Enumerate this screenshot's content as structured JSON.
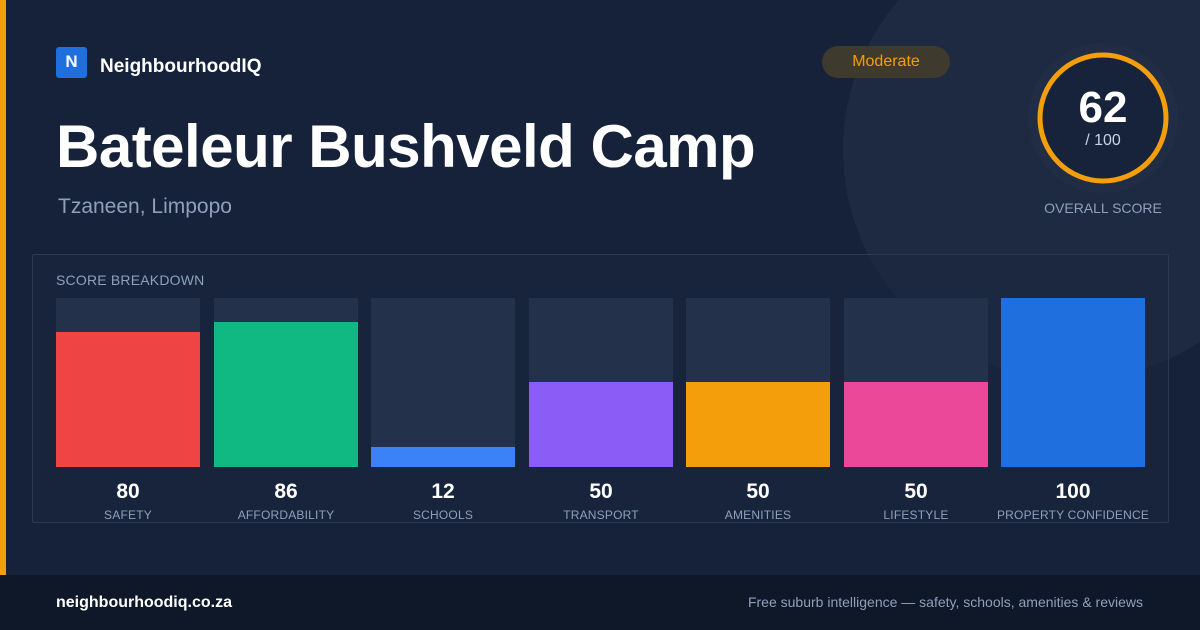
{
  "brand": {
    "logo_letter": "N",
    "name": "NeighbourhoodIQ"
  },
  "badge": {
    "label": "Moderate",
    "color": "#f59e0b"
  },
  "place": {
    "name": "Bateleur Bushveld Camp",
    "location": "Tzaneen, Limpopo"
  },
  "overall": {
    "score": "62",
    "max_label": "/ 100",
    "score_value": 62,
    "caption": "OVERALL SCORE",
    "ring_color": "#f59e0b"
  },
  "breakdown": {
    "label": "SCORE BREAKDOWN",
    "items": [
      {
        "value": "80",
        "score": 80,
        "label": "SAFETY",
        "color": "#ef4444"
      },
      {
        "value": "86",
        "score": 86,
        "label": "AFFORDABILITY",
        "color": "#10b981"
      },
      {
        "value": "12",
        "score": 12,
        "label": "SCHOOLS",
        "color": "#3b82f6"
      },
      {
        "value": "50",
        "score": 50,
        "label": "TRANSPORT",
        "color": "#8b5cf6"
      },
      {
        "value": "50",
        "score": 50,
        "label": "AMENITIES",
        "color": "#f59e0b"
      },
      {
        "value": "50",
        "score": 50,
        "label": "LIFESTYLE",
        "color": "#ec4899"
      },
      {
        "value": "100",
        "score": 100,
        "label": "PROPERTY CONFIDENCE",
        "color": "#1f6fde"
      }
    ]
  },
  "footer": {
    "url": "neighbourhoodiq.co.za",
    "tagline": "Free suburb intelligence — safety, schools, amenities & reviews"
  }
}
